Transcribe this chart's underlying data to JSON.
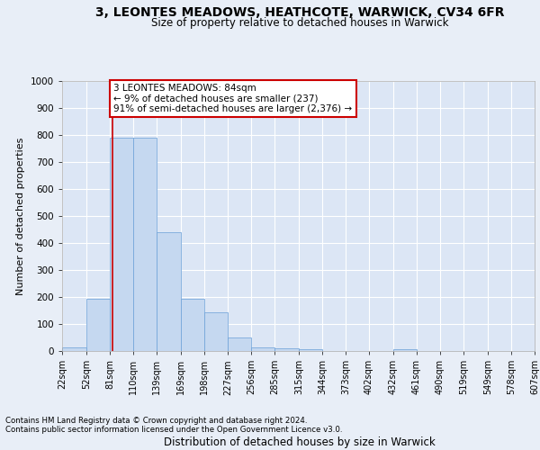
{
  "title1": "3, LEONTES MEADOWS, HEATHCOTE, WARWICK, CV34 6FR",
  "title2": "Size of property relative to detached houses in Warwick",
  "xlabel": "Distribution of detached houses by size in Warwick",
  "ylabel": "Number of detached properties",
  "footnote1": "Contains HM Land Registry data © Crown copyright and database right 2024.",
  "footnote2": "Contains public sector information licensed under the Open Government Licence v3.0.",
  "annotation_title": "3 LEONTES MEADOWS: 84sqm",
  "annotation_line1": "← 9% of detached houses are smaller (237)",
  "annotation_line2": "91% of semi-detached houses are larger (2,376) →",
  "property_size": 84,
  "bin_edges": [
    22,
    52,
    81,
    110,
    139,
    169,
    198,
    227,
    256,
    285,
    315,
    344,
    373,
    402,
    432,
    461,
    490,
    519,
    549,
    578,
    607
  ],
  "bar_heights": [
    15,
    195,
    790,
    790,
    440,
    195,
    145,
    50,
    15,
    10,
    8,
    0,
    0,
    0,
    8,
    0,
    0,
    0,
    0,
    0
  ],
  "bar_color": "#c5d8f0",
  "bar_edge_color": "#6a9fd8",
  "marker_color": "#cc0000",
  "background_color": "#e8eef7",
  "plot_bg_color": "#dce6f5",
  "grid_color": "#ffffff",
  "annotation_box_color": "#ffffff",
  "annotation_box_edge": "#cc0000",
  "ylim": [
    0,
    1000
  ],
  "yticks": [
    0,
    100,
    200,
    300,
    400,
    500,
    600,
    700,
    800,
    900,
    1000
  ]
}
